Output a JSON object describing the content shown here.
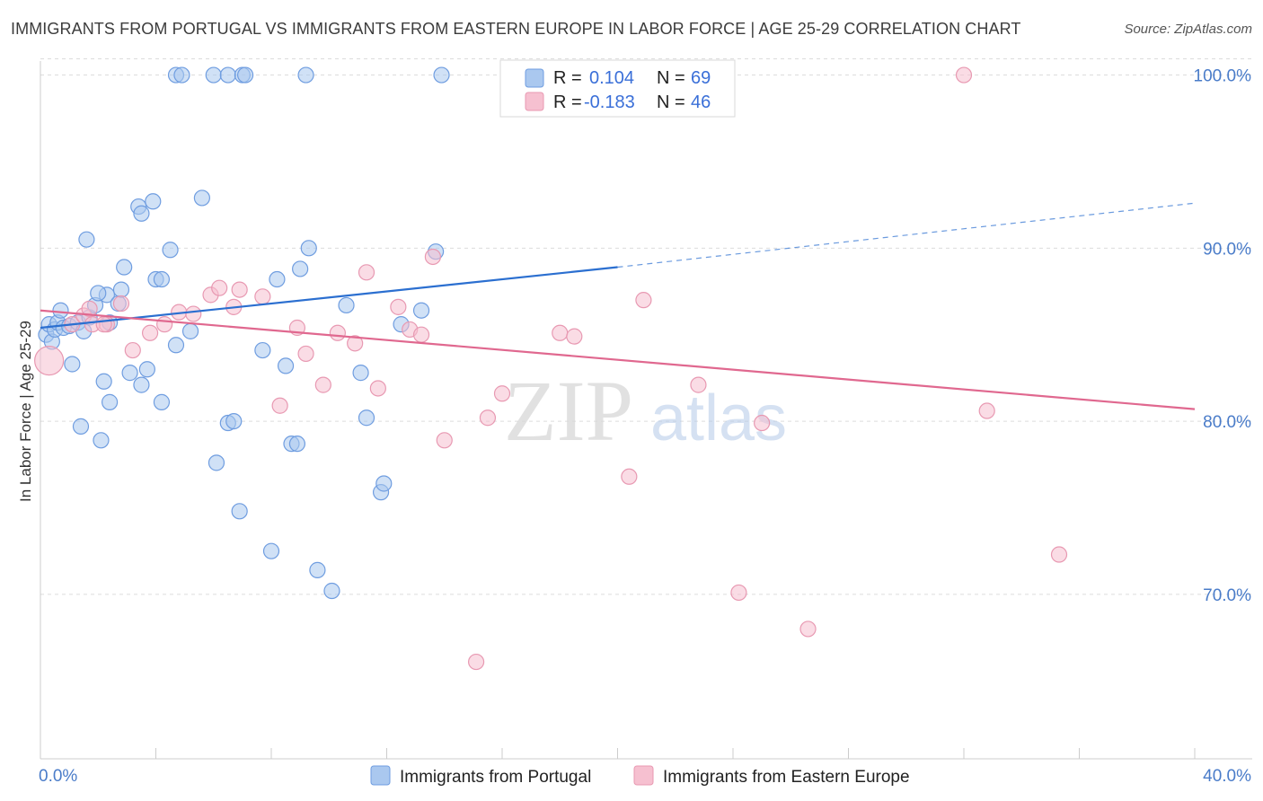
{
  "title": "IMMIGRANTS FROM PORTUGAL VS IMMIGRANTS FROM EASTERN EUROPE IN LABOR FORCE | AGE 25-29 CORRELATION CHART",
  "source": "Source: ZipAtlas.com",
  "watermark": {
    "zip": "ZIP",
    "atlas": "atlas"
  },
  "legend_top": [
    {
      "r_label": "R =",
      "r_value": "0.104",
      "n_label": "N =",
      "n_value": "69"
    },
    {
      "r_label": "R =",
      "r_value": "-0.183",
      "n_label": "N =",
      "n_value": "46"
    }
  ],
  "colors": {
    "blue_fill": "#aac8ef",
    "blue_stroke": "#6f9de0",
    "blue_line": "#2b6fd0",
    "pink_fill": "#f6c0d0",
    "pink_stroke": "#e899b2",
    "pink_line": "#e0688f",
    "axis_text": "#4a7cc9",
    "grid": "#dcdcdc"
  },
  "chart_data": {
    "type": "scatter",
    "title": "IMMIGRANTS FROM PORTUGAL VS IMMIGRANTS FROM EASTERN EUROPE IN LABOR FORCE | AGE 25-29 CORRELATION CHART",
    "xlabel": "",
    "ylabel": "In Labor Force | Age 25-29",
    "xlim": [
      0,
      40
    ],
    "ylim": [
      60.5,
      102
    ],
    "x_tick_labels": [
      "0.0%",
      "40.0%"
    ],
    "y_ticks": [
      70,
      80,
      90,
      100
    ],
    "y_tick_labels": [
      "70.0%",
      "80.0%",
      "90.0%",
      "100.0%"
    ],
    "grid": "horizontal dashed",
    "series": [
      {
        "name": "Immigrants from Portugal",
        "color": "#aac8ef",
        "trend": {
          "x": [
            0,
            20
          ],
          "y": [
            85.4,
            88.9
          ],
          "dashed_to": [
            40,
            92.6
          ]
        },
        "points": [
          [
            0.2,
            85.0
          ],
          [
            0.3,
            85.6
          ],
          [
            0.4,
            84.6
          ],
          [
            0.5,
            85.3
          ],
          [
            0.6,
            85.7
          ],
          [
            0.7,
            86.4
          ],
          [
            0.8,
            85.4
          ],
          [
            1.0,
            85.5
          ],
          [
            1.3,
            85.7
          ],
          [
            1.5,
            85.2
          ],
          [
            1.7,
            86.0
          ],
          [
            1.9,
            86.7
          ],
          [
            2.3,
            87.3
          ],
          [
            2.4,
            85.7
          ],
          [
            2.7,
            86.8
          ],
          [
            2.8,
            87.6
          ],
          [
            1.1,
            83.3
          ],
          [
            1.4,
            79.7
          ],
          [
            2.1,
            78.9
          ],
          [
            2.2,
            82.3
          ],
          [
            2.4,
            81.1
          ],
          [
            3.1,
            82.8
          ],
          [
            3.5,
            82.1
          ],
          [
            3.7,
            83.0
          ],
          [
            4.2,
            81.1
          ],
          [
            4.7,
            84.4
          ],
          [
            5.2,
            85.2
          ],
          [
            1.6,
            90.5
          ],
          [
            2.0,
            87.4
          ],
          [
            2.9,
            88.9
          ],
          [
            3.4,
            92.4
          ],
          [
            3.5,
            92.0
          ],
          [
            3.9,
            92.7
          ],
          [
            4.0,
            88.2
          ],
          [
            4.2,
            88.2
          ],
          [
            4.5,
            89.9
          ],
          [
            5.6,
            92.9
          ],
          [
            6.1,
            77.6
          ],
          [
            6.5,
            79.9
          ],
          [
            6.7,
            80.0
          ],
          [
            6.9,
            74.8
          ],
          [
            7.7,
            84.1
          ],
          [
            8.0,
            72.5
          ],
          [
            8.2,
            88.2
          ],
          [
            8.5,
            83.2
          ],
          [
            8.7,
            78.7
          ],
          [
            8.9,
            78.7
          ],
          [
            9.0,
            88.8
          ],
          [
            9.3,
            90.0
          ],
          [
            9.6,
            71.4
          ],
          [
            10.1,
            70.2
          ],
          [
            10.6,
            86.7
          ],
          [
            11.1,
            82.8
          ],
          [
            11.3,
            80.2
          ],
          [
            11.8,
            75.9
          ],
          [
            11.9,
            76.4
          ],
          [
            12.5,
            85.6
          ],
          [
            13.2,
            86.4
          ],
          [
            13.7,
            89.8
          ],
          [
            4.7,
            100.0
          ],
          [
            4.9,
            100.0
          ],
          [
            6.0,
            100.0
          ],
          [
            6.5,
            100.0
          ],
          [
            7.0,
            100.0
          ],
          [
            7.1,
            100.0
          ],
          [
            9.2,
            100.0
          ],
          [
            13.9,
            100.0
          ],
          [
            16.7,
            100.0
          ],
          [
            17.0,
            100.0
          ]
        ]
      },
      {
        "name": "Immigrants from Eastern Europe",
        "color": "#f6c0d0",
        "trend": {
          "x": [
            0,
            40
          ],
          "y": [
            86.4,
            80.7
          ]
        },
        "points": [
          [
            0.3,
            83.5
          ],
          [
            1.1,
            85.6
          ],
          [
            1.5,
            86.1
          ],
          [
            1.7,
            86.5
          ],
          [
            2.3,
            85.6
          ],
          [
            2.8,
            86.8
          ],
          [
            3.2,
            84.1
          ],
          [
            3.8,
            85.1
          ],
          [
            4.3,
            85.6
          ],
          [
            4.8,
            86.3
          ],
          [
            5.3,
            86.2
          ],
          [
            5.9,
            87.3
          ],
          [
            6.2,
            87.7
          ],
          [
            6.7,
            86.6
          ],
          [
            6.9,
            87.6
          ],
          [
            7.7,
            87.2
          ],
          [
            8.3,
            80.9
          ],
          [
            8.9,
            85.4
          ],
          [
            9.2,
            83.9
          ],
          [
            9.8,
            82.1
          ],
          [
            10.3,
            85.1
          ],
          [
            10.9,
            84.5
          ],
          [
            11.3,
            88.6
          ],
          [
            11.7,
            81.9
          ],
          [
            12.4,
            86.6
          ],
          [
            12.8,
            85.3
          ],
          [
            13.2,
            85.0
          ],
          [
            13.6,
            89.5
          ],
          [
            14.0,
            78.9
          ],
          [
            15.1,
            66.1
          ],
          [
            15.5,
            80.2
          ],
          [
            16.0,
            81.6
          ],
          [
            18.0,
            85.1
          ],
          [
            18.5,
            84.9
          ],
          [
            20.4,
            76.8
          ],
          [
            20.9,
            87.0
          ],
          [
            21.9,
            100.0
          ],
          [
            22.8,
            82.1
          ],
          [
            24.2,
            70.1
          ],
          [
            25.0,
            79.9
          ],
          [
            26.6,
            68.0
          ],
          [
            32.0,
            100.0
          ],
          [
            32.8,
            80.6
          ],
          [
            35.3,
            72.3
          ],
          [
            1.8,
            85.6
          ],
          [
            2.2,
            85.6
          ]
        ]
      }
    ]
  },
  "bottom_legend": [
    {
      "label": "Immigrants from Portugal"
    },
    {
      "label": "Immigrants from Eastern Europe"
    }
  ]
}
